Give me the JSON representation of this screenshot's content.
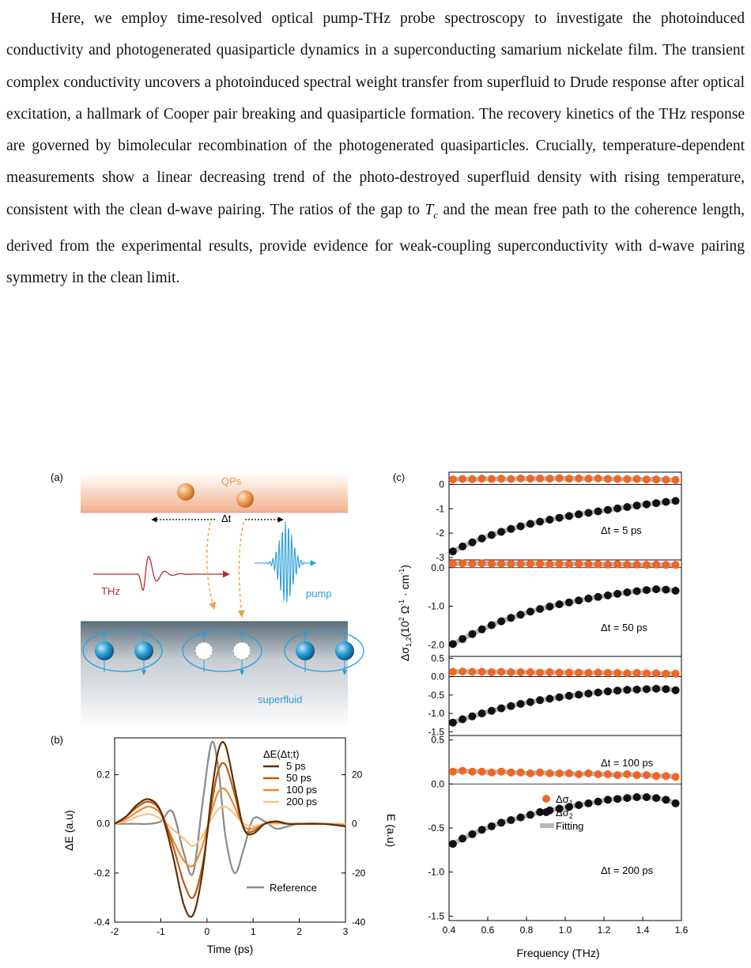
{
  "paragraph": {
    "part1": "Here, we employ time-resolved optical pump-THz probe spectroscopy to investigate the photoinduced conductivity and photogenerated quasiparticle dynamics in a superconducting samarium nickelate film. The transient complex conductivity uncovers a photoinduced spectral weight transfer from superfluid to Drude response after optical excitation, a hallmark of Cooper pair breaking and quasiparticle formation. The recovery kinetics of the THz response are governed by bimolecular recombination of the photogenerated quasiparticles. Crucially, temperature-dependent measurements show a linear decreasing trend of the photo-destroyed superfluid density with rising temperature, consistent with the clean d-wave pairing. The ratios of the gap to ",
    "tc_symbol": "T",
    "tc_subscript": "c",
    "part2": " and the mean free path to the coherence length, derived from the experimental results, provide evidence for weak-coupling superconductivity with d-wave pairing symmetry in the clean limit."
  },
  "colors": {
    "sigma1": "#f26522",
    "sigma2": "#111111",
    "fitting": "#b8b8b8",
    "reference": "#8a8a8a",
    "thz": "#c0282d",
    "pump": "#2a9fd8",
    "qp": "#e8964a",
    "superfluid": "#2a9fd8",
    "traces": [
      "#5c2f08",
      "#c05a12",
      "#f08a2e",
      "#f7c38f"
    ]
  },
  "panel_a": {
    "label": "(a)",
    "qps_label": "QPs",
    "delta_t_label": "Δt",
    "thz_label": "THz",
    "pump_label": "pump",
    "superfluid_label": "superfluid"
  },
  "panel_b": {
    "label": "(b)",
    "legend_title": "ΔE(Δt;t)",
    "ylabel_left": "ΔE (a.u)",
    "ylabel_right": "E (a.u)",
    "xlabel": "Time (ps)",
    "reference_label": "Reference"
  },
  "panel_c": {
    "label": "(c)",
    "xlabel": "Frequency (THz)",
    "ylabel_main": "Δσ",
    "ylabel_sub": "1,2",
    "ylabel_rest1": "(10",
    "ylabel_exp": "2",
    "ylabel_rest2": " Ω",
    "ylabel_exp2": "-1",
    "ylabel_rest3": " · cm",
    "ylabel_exp3": "-1",
    "ylabel_rest4": ")",
    "legend": {
      "sigma1": "Δσ",
      "sigma1_sub": "1",
      "sigma2": "Δσ",
      "sigma2_sub": "2",
      "fitting": "Fitting"
    },
    "delay_labels": [
      "Δt = 5 ps",
      "Δt = 50 ps",
      "Δt = 100 ps",
      "Δt = 200 ps"
    ]
  },
  "chart_data": [
    {
      "type": "line",
      "panel": "(b)",
      "xlabel": "Time (ps)",
      "ylabel": "ΔE (a.u)",
      "ylabel_right": "E (a.u)",
      "xlim": [
        -2,
        3
      ],
      "ylim": [
        -0.4,
        0.35
      ],
      "ylim_right": [
        -40,
        35
      ],
      "x_ticks": [
        "-2",
        "-1",
        "0",
        "1",
        "2",
        "3"
      ],
      "y_ticks": [
        "-0.4",
        "-0.2",
        "0.0",
        "0.2"
      ],
      "y_ticks_right": [
        "-40",
        "-20",
        "0",
        "20"
      ],
      "legend_title": "ΔE(Δt;t)",
      "x": [
        -2.0,
        -1.75,
        -1.5,
        -1.25,
        -1.0,
        -0.75,
        -0.5,
        -0.3,
        -0.1,
        0.1,
        0.25,
        0.4,
        0.6,
        0.8,
        1.0,
        1.25,
        1.5,
        1.75,
        2.0,
        2.5,
        3.0
      ],
      "series": [
        {
          "name": "5 ps",
          "values": [
            0.0,
            0.03,
            0.08,
            0.1,
            0.05,
            -0.12,
            -0.33,
            -0.37,
            -0.2,
            0.12,
            0.3,
            0.32,
            0.15,
            -0.02,
            -0.04,
            0.0,
            0.01,
            0.0,
            0.0,
            0.0,
            -0.01
          ]
        },
        {
          "name": "50 ps",
          "values": [
            0.0,
            0.03,
            0.07,
            0.09,
            0.05,
            -0.08,
            -0.24,
            -0.3,
            -0.17,
            0.08,
            0.22,
            0.24,
            0.12,
            -0.02,
            -0.03,
            0.0,
            0.01,
            0.0,
            0.0,
            0.0,
            -0.01
          ]
        },
        {
          "name": "100 ps",
          "values": [
            0.0,
            0.02,
            0.05,
            0.07,
            0.04,
            -0.06,
            -0.15,
            -0.17,
            -0.09,
            0.05,
            0.13,
            0.14,
            0.07,
            -0.01,
            -0.02,
            0.0,
            0.005,
            0.0,
            0.0,
            0.0,
            -0.005
          ]
        },
        {
          "name": "200 ps",
          "values": [
            0.0,
            0.01,
            0.03,
            0.04,
            0.02,
            -0.02,
            -0.06,
            -0.09,
            -0.05,
            0.02,
            0.06,
            0.07,
            0.04,
            0.0,
            -0.01,
            0.0,
            0.0,
            0.0,
            0.0,
            0.0,
            0.0
          ]
        },
        {
          "name": "Reference",
          "axis": "right",
          "values": [
            0,
            0,
            0,
            0,
            1,
            5,
            -12,
            -20,
            8,
            33,
            22,
            -5,
            -20,
            -10,
            2,
            1,
            -2,
            -1,
            0,
            0,
            0
          ]
        }
      ]
    },
    {
      "type": "scatter",
      "panel": "(c)",
      "xlabel": "Frequency (THz)",
      "ylabel": "Δσ1,2(10^2 Ω^-1 · cm^-1)",
      "xlim": [
        0.4,
        1.6
      ],
      "x_ticks": [
        "0.4",
        "0.6",
        "0.8",
        "1.0",
        "1.2",
        "1.4",
        "1.6"
      ],
      "x": [
        0.42,
        0.47,
        0.52,
        0.57,
        0.62,
        0.67,
        0.72,
        0.77,
        0.82,
        0.87,
        0.92,
        0.97,
        1.02,
        1.07,
        1.12,
        1.17,
        1.22,
        1.27,
        1.32,
        1.37,
        1.42,
        1.47,
        1.52,
        1.57
      ],
      "subplots": [
        {
          "label": "Δt = 5 ps",
          "ylim": [
            -3.1,
            0.5
          ],
          "y_ticks": [
            "-3",
            "-2",
            "-1",
            "0"
          ],
          "series": [
            {
              "name": "Δσ1",
              "values": [
                0.2,
                0.22,
                0.21,
                0.23,
                0.22,
                0.23,
                0.22,
                0.24,
                0.23,
                0.24,
                0.23,
                0.25,
                0.23,
                0.24,
                0.23,
                0.24,
                0.22,
                0.22,
                0.21,
                0.22,
                0.2,
                0.2,
                0.19,
                0.18
              ]
            },
            {
              "name": "Δσ2",
              "values": [
                -2.75,
                -2.55,
                -2.38,
                -2.22,
                -2.08,
                -1.95,
                -1.83,
                -1.72,
                -1.62,
                -1.53,
                -1.45,
                -1.37,
                -1.3,
                -1.23,
                -1.17,
                -1.11,
                -1.05,
                -0.99,
                -0.93,
                -0.87,
                -0.82,
                -0.77,
                -0.72,
                -0.68
              ]
            }
          ]
        },
        {
          "label": "Δt = 50 ps",
          "ylim": [
            -2.3,
            0.2
          ],
          "y_ticks": [
            "-2.0",
            "-1.0",
            "0.0"
          ],
          "series": [
            {
              "name": "Δσ1",
              "values": [
                0.1,
                0.11,
                0.1,
                0.11,
                0.1,
                0.1,
                0.1,
                0.1,
                0.1,
                0.1,
                0.09,
                0.1,
                0.09,
                0.1,
                0.09,
                0.09,
                0.08,
                0.09,
                0.08,
                0.08,
                0.07,
                0.08,
                0.07,
                0.07
              ]
            },
            {
              "name": "Δσ2",
              "values": [
                -1.98,
                -1.85,
                -1.72,
                -1.6,
                -1.49,
                -1.39,
                -1.3,
                -1.22,
                -1.14,
                -1.07,
                -1.01,
                -0.95,
                -0.9,
                -0.85,
                -0.8,
                -0.76,
                -0.72,
                -0.68,
                -0.64,
                -0.61,
                -0.58,
                -0.56,
                -0.57,
                -0.6
              ]
            }
          ]
        },
        {
          "label": "Δt = 100 ps",
          "ylim": [
            -1.6,
            0.55
          ],
          "y_ticks": [
            "-1.5",
            "-1.0",
            "-0.5",
            "0.0",
            "0.5"
          ],
          "series": [
            {
              "name": "Δσ1",
              "values": [
                0.13,
                0.14,
                0.13,
                0.13,
                0.12,
                0.13,
                0.12,
                0.12,
                0.12,
                0.11,
                0.12,
                0.11,
                0.11,
                0.11,
                0.1,
                0.11,
                0.1,
                0.1,
                0.09,
                0.1,
                0.09,
                0.09,
                0.08,
                0.08
              ]
            },
            {
              "name": "Δσ2",
              "values": [
                -1.25,
                -1.16,
                -1.08,
                -1.0,
                -0.93,
                -0.86,
                -0.8,
                -0.74,
                -0.69,
                -0.64,
                -0.6,
                -0.56,
                -0.52,
                -0.49,
                -0.46,
                -0.43,
                -0.4,
                -0.38,
                -0.36,
                -0.35,
                -0.34,
                -0.33,
                -0.34,
                -0.37
              ]
            }
          ]
        },
        {
          "label": "Δt = 200 ps",
          "ylim": [
            -1.55,
            0.55
          ],
          "y_ticks": [
            "-1.5",
            "-1.0",
            "-0.5",
            "0.0",
            "0.5"
          ],
          "series": [
            {
              "name": "Δσ1",
              "values": [
                0.14,
                0.15,
                0.14,
                0.14,
                0.13,
                0.14,
                0.13,
                0.13,
                0.12,
                0.13,
                0.12,
                0.12,
                0.12,
                0.11,
                0.12,
                0.11,
                0.11,
                0.1,
                0.11,
                0.1,
                0.1,
                0.09,
                0.09,
                0.08
              ]
            },
            {
              "name": "Δσ2",
              "values": [
                -0.68,
                -0.62,
                -0.57,
                -0.52,
                -0.48,
                -0.44,
                -0.41,
                -0.38,
                -0.35,
                -0.32,
                -0.3,
                -0.28,
                -0.26,
                -0.24,
                -0.22,
                -0.2,
                -0.18,
                -0.17,
                -0.16,
                -0.15,
                -0.15,
                -0.16,
                -0.18,
                -0.22
              ]
            }
          ]
        }
      ]
    }
  ]
}
